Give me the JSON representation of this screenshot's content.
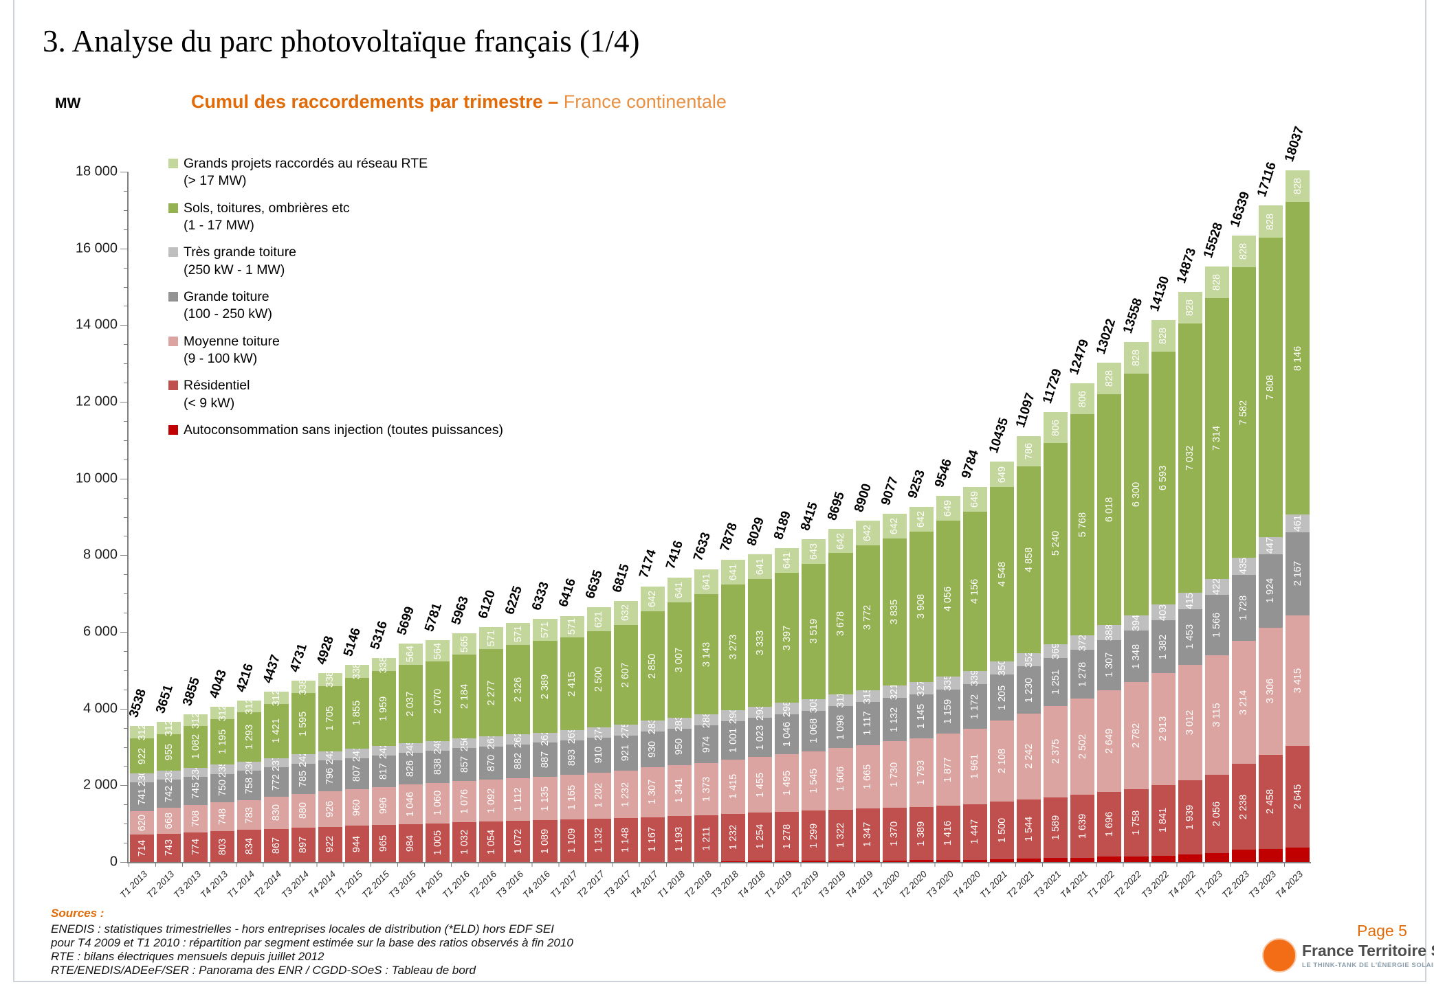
{
  "slide": {
    "title": "3. Analyse du parc photovoltaïque français (1/4)",
    "page_label": "Page 5"
  },
  "chart": {
    "y_axis_title": "MW",
    "subtitle_bold": "Cumul des raccordements par trimestre",
    "subtitle_sep": " – ",
    "subtitle_rest": "France continentale"
  },
  "chart_data": {
    "type": "bar",
    "stacked": true,
    "title": "Cumul des raccordements par trimestre – France continentale",
    "ylabel": "MW",
    "ylim": [
      0,
      18000
    ],
    "y_major_step": 2000,
    "y_minor_step": 500,
    "grid": false,
    "legend_position": "upper-left",
    "categories": [
      "T1 2013",
      "T2 2013",
      "T3 2013",
      "T4 2013",
      "T1 2014",
      "T2 2014",
      "T3 2014",
      "T4 2014",
      "T1 2015",
      "T2 2015",
      "T3 2015",
      "T4 2015",
      "T1 2016",
      "T2 2016",
      "T3 2016",
      "T4 2016",
      "T1 2017",
      "T2 2017",
      "T3 2017",
      "T4 2017",
      "T1 2018",
      "T2 2018",
      "T3 2018",
      "T4 2018",
      "T1 2019",
      "T2 2019",
      "T3 2019",
      "T4 2019",
      "T1 2020",
      "T2 2020",
      "T3 2020",
      "T4 2020",
      "T1 2021",
      "T2 2021",
      "T3 2021",
      "T4 2021",
      "T1 2022",
      "T2 2022",
      "T3 2022",
      "T4 2022",
      "T1 2023",
      "T2 2023",
      "T3 2023",
      "T4 2023"
    ],
    "series": [
      {
        "key": "autoconsommation",
        "name": "Autoconsommation sans injection (toutes puissances)",
        "color": "#C00000",
        "values": [
          null,
          null,
          null,
          null,
          null,
          null,
          null,
          null,
          null,
          null,
          null,
          null,
          null,
          null,
          null,
          null,
          null,
          null,
          null,
          null,
          null,
          null,
          26,
          30,
          33,
          36,
          38,
          42,
          45,
          48,
          53,
          60,
          74,
          85,
          99,
          115,
          136,
          148,
          170,
          194,
          227,
          316,
          345,
          376
        ]
      },
      {
        "key": "residentiel",
        "name": "Résidentiel (< 9 kW)",
        "color": "#C0504D",
        "values": [
          714,
          743,
          774,
          803,
          834,
          867,
          897,
          922,
          944,
          965,
          984,
          1005,
          1032,
          1054,
          1072,
          1089,
          1109,
          1132,
          1148,
          1167,
          1193,
          1211,
          1232,
          1254,
          1278,
          1299,
          1322,
          1347,
          1370,
          1389,
          1416,
          1447,
          1500,
          1544,
          1589,
          1639,
          1696,
          1758,
          1841,
          1939,
          2056,
          2238,
          2458,
          2645
        ]
      },
      {
        "key": "moyenne",
        "name": "Moyenne toiture (9 - 100 kW)",
        "color": "#DBA4A0",
        "values": [
          620,
          668,
          708,
          748,
          783,
          830,
          880,
          926,
          960,
          996,
          1046,
          1060,
          1076,
          1092,
          1112,
          1135,
          1165,
          1202,
          1232,
          1307,
          1341,
          1373,
          1415,
          1455,
          1495,
          1545,
          1606,
          1665,
          1730,
          1793,
          1877,
          1961,
          2108,
          2242,
          2375,
          2502,
          2649,
          2782,
          2913,
          3012,
          3115,
          3214,
          3306,
          3415
        ]
      },
      {
        "key": "grande",
        "name": "Grande toiture (100 - 250 kW)",
        "color": "#939393",
        "values": [
          741,
          742,
          745,
          750,
          758,
          772,
          785,
          796,
          807,
          817,
          826,
          838,
          857,
          870,
          882,
          887,
          893,
          910,
          921,
          930,
          950,
          974,
          1001,
          1023,
          1046,
          1068,
          1098,
          1117,
          1132,
          1145,
          1159,
          1172,
          1205,
          1230,
          1251,
          1278,
          1307,
          1348,
          1382,
          1453,
          1566,
          1728,
          1924,
          2167
        ]
      },
      {
        "key": "tres_grande",
        "name": "Très grande toiture (250 kW - 1 MW)",
        "color": "#BFBFBF",
        "values": [
          230,
          232,
          234,
          235,
          236,
          237,
          242,
          242,
          241,
          242,
          245,
          249,
          256,
          261,
          262,
          262,
          269,
          274,
          275,
          283,
          283,
          288,
          290,
          293,
          298,
          305,
          311,
          315,
          321,
          327,
          335,
          339,
          350,
          352,
          369,
          372,
          388,
          394,
          403,
          415,
          422,
          435,
          447,
          461
        ]
      },
      {
        "key": "sols",
        "name": "Sols, toitures, ombrières etc (1 - 17 MW)",
        "color": "#94B251",
        "values": [
          922,
          955,
          1082,
          1195,
          1293,
          1421,
          1595,
          1705,
          1855,
          1959,
          2037,
          2070,
          2184,
          2277,
          2326,
          2389,
          2415,
          2500,
          2607,
          2850,
          3007,
          3143,
          3273,
          3333,
          3397,
          3519,
          3678,
          3772,
          3835,
          3908,
          4056,
          4156,
          4548,
          4858,
          5240,
          5768,
          6018,
          6300,
          6593,
          7032,
          7314,
          7582,
          7808,
          8146
        ]
      },
      {
        "key": "rte",
        "name": "Grands projets raccordés au réseau RTE (> 17 MW)",
        "color": "#C3D69B",
        "values": [
          312,
          312,
          312,
          312,
          312,
          312,
          338,
          338,
          338,
          338,
          564,
          564,
          565,
          571,
          571,
          571,
          571,
          621,
          632,
          642,
          641,
          641,
          641,
          641,
          641,
          643,
          642,
          642,
          642,
          642,
          649,
          649,
          649,
          786,
          806,
          806,
          828,
          828,
          828,
          828,
          828,
          828,
          828,
          828
        ]
      }
    ],
    "totals": [
      3538,
      3651,
      3855,
      4043,
      4216,
      4437,
      4731,
      4928,
      5146,
      5316,
      5699,
      5781,
      5963,
      6120,
      6225,
      6333,
      6416,
      6635,
      6815,
      7174,
      7416,
      7633,
      7878,
      8029,
      8189,
      8415,
      8695,
      8900,
      9077,
      9253,
      9546,
      9784,
      10435,
      11097,
      11729,
      12479,
      13022,
      13558,
      14130,
      14873,
      15528,
      16339,
      17116,
      18037
    ],
    "legend": [
      {
        "key": "rte",
        "label": "Grands projets raccordés au réseau RTE",
        "sublabel": "(> 17 MW)"
      },
      {
        "key": "sols",
        "label": "Sols, toitures, ombrières etc",
        "sublabel": "(1 - 17 MW)"
      },
      {
        "key": "tres_grande",
        "label": "Très grande toiture",
        "sublabel": "(250 kW - 1 MW)"
      },
      {
        "key": "grande",
        "label": "Grande toiture",
        "sublabel": "(100 - 250 kW)"
      },
      {
        "key": "moyenne",
        "label": "Moyenne toiture",
        "sublabel": "(9 - 100 kW)"
      },
      {
        "key": "residentiel",
        "label": "Résidentiel",
        "sublabel": "(< 9 kW)"
      },
      {
        "key": "autoconsommation",
        "label": "Autoconsommation sans injection (toutes puissances)",
        "sublabel": ""
      }
    ]
  },
  "sources": {
    "heading": "Sources :",
    "lines": [
      "ENEDIS : statistiques trimestrielles - hors entreprises locales de distribution (*ELD) hors EDF SEI",
      "pour T4 2009 et T1 2010 : répartition par segment estimée sur la base des ratios observés à fin 2010",
      "RTE : bilans électriques mensuels depuis juillet 2012",
      "RTE/ENEDIS/ADEeF/SER : Panorama des ENR /  CGDD-SOeS : Tableau de bord"
    ]
  },
  "footer_logo": {
    "name": "France Territoire Solaire",
    "tagline": "LE THINK-TANK DE L'ÉNERGIE SOLAIRE PHOTOVOLTAÏQUE"
  }
}
